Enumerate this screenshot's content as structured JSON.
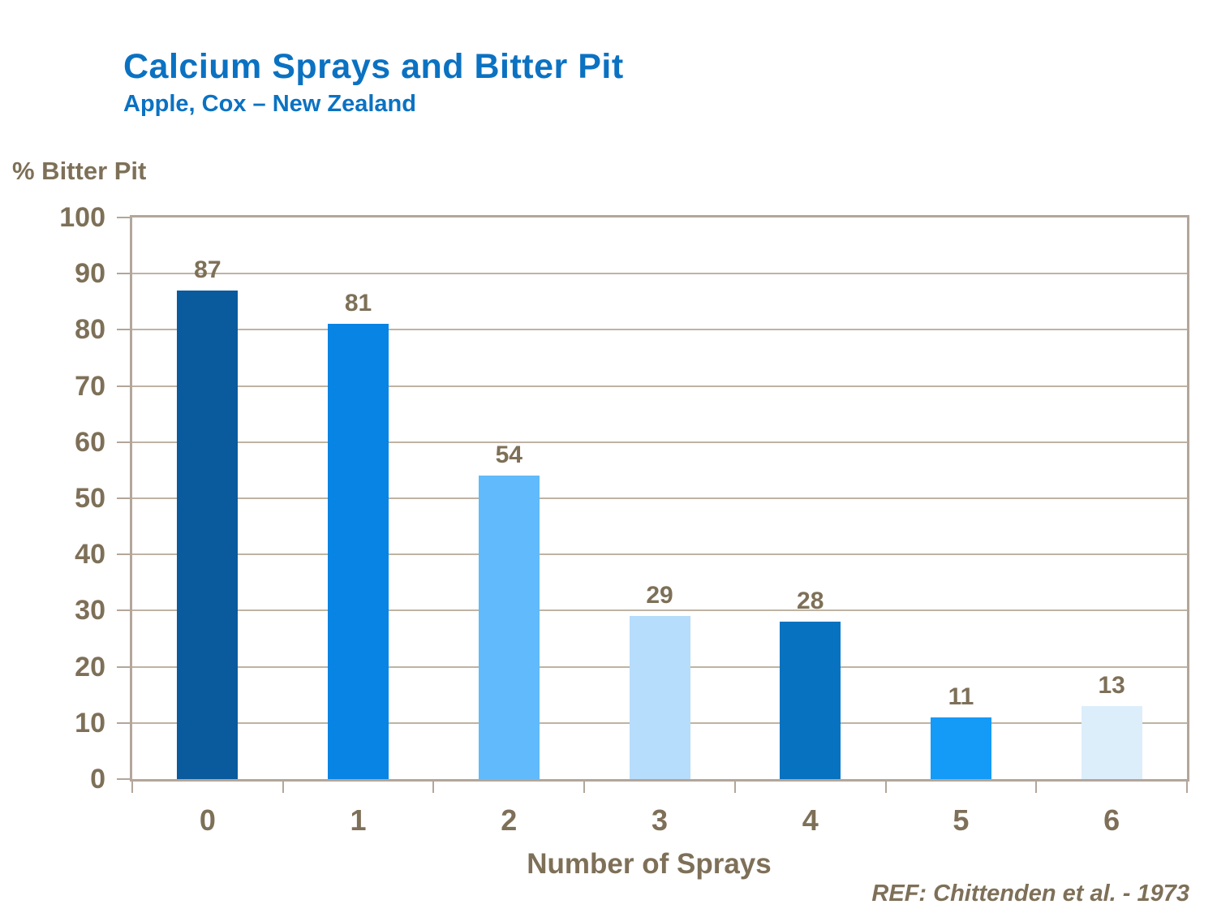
{
  "header": {
    "title": "Calcium Sprays and Bitter Pit",
    "subtitle": "Apple, Cox – New Zealand"
  },
  "footer": {
    "reference": "REF: Chittenden et al. - 1973"
  },
  "colors": {
    "title_blue": "#0B72C2",
    "axis_text_brown": "#7E7058",
    "axis_line_taupe": "#B3A69A",
    "gridline_taupe": "#BFB3A3",
    "background": "#FFFFFF"
  },
  "chart_data": {
    "type": "bar",
    "title": "Calcium Sprays and Bitter Pit",
    "subtitle": "Apple, Cox – New Zealand",
    "categories": [
      "0",
      "1",
      "2",
      "3",
      "4",
      "5",
      "6"
    ],
    "values": [
      87,
      81,
      54,
      29,
      28,
      11,
      13
    ],
    "bar_colors": [
      "#0A5A9E",
      "#0884E4",
      "#61BAFB",
      "#B6DDFB",
      "#0672C0",
      "#149AF7",
      "#DDEEFB"
    ],
    "data_labels": [
      "87",
      "81",
      "54",
      "29",
      "28",
      "11",
      "13"
    ],
    "xlabel": "Number of Sprays",
    "ylabel": "% Bitter Pit",
    "ylim": [
      0,
      100
    ],
    "yticks": [
      0,
      10,
      20,
      30,
      40,
      50,
      60,
      70,
      80,
      90,
      100
    ],
    "grid": true,
    "legend": false,
    "annotation": "REF: Chittenden et al. - 1973"
  }
}
